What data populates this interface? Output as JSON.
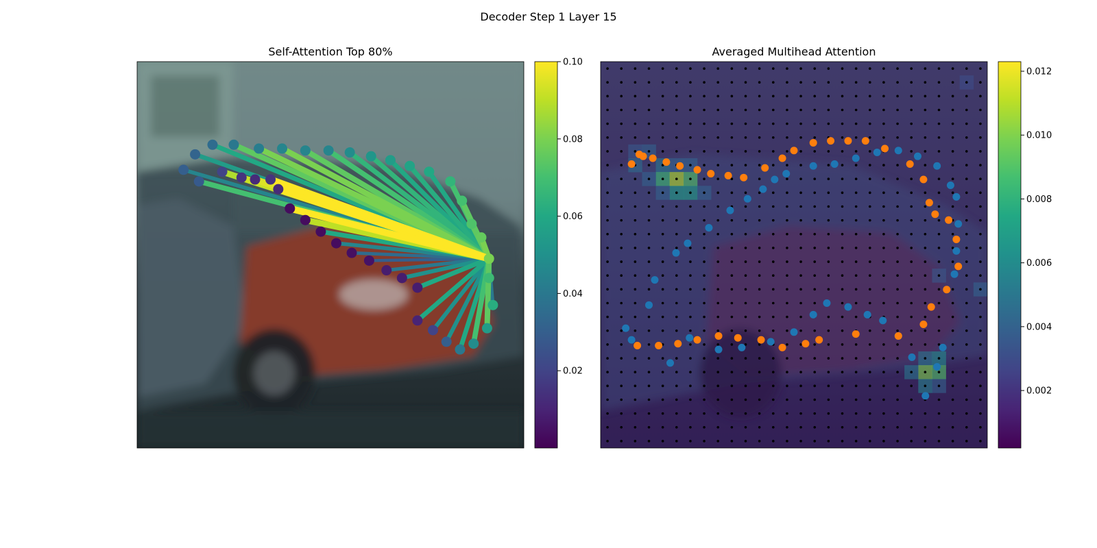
{
  "figure": {
    "suptitle": "Decoder Step 1 Layer 15"
  },
  "chart_data": [
    {
      "type": "scatter",
      "title": "Self-Attention Top 80%",
      "description_visible": "query point with weighted attention lines to contour points, over a blurred photo of a red car",
      "colormap": "viridis",
      "colorbar": {
        "min": 0.0,
        "max": 0.1,
        "ticks": [
          "0.02",
          "0.04",
          "0.06",
          "0.08",
          "0.10"
        ],
        "tick_values": [
          0.02,
          0.04,
          0.06,
          0.08,
          0.1
        ]
      },
      "x_range": [
        0,
        100
      ],
      "y_range": [
        0,
        100
      ],
      "query_point": {
        "x": 91,
        "y": 51,
        "value": 0.08
      },
      "points": [
        {
          "x": 12,
          "y": 28,
          "v": 0.03
        },
        {
          "x": 15,
          "y": 24,
          "v": 0.032
        },
        {
          "x": 19.5,
          "y": 21.5,
          "v": 0.035
        },
        {
          "x": 25,
          "y": 21.5,
          "v": 0.04
        },
        {
          "x": 31.5,
          "y": 22.5,
          "v": 0.042
        },
        {
          "x": 37.5,
          "y": 22.5,
          "v": 0.045
        },
        {
          "x": 43.5,
          "y": 23,
          "v": 0.045
        },
        {
          "x": 49.5,
          "y": 23,
          "v": 0.045
        },
        {
          "x": 55,
          "y": 23.5,
          "v": 0.048
        },
        {
          "x": 60.5,
          "y": 24.5,
          "v": 0.052
        },
        {
          "x": 65.5,
          "y": 25.5,
          "v": 0.055
        },
        {
          "x": 70.5,
          "y": 27,
          "v": 0.058
        },
        {
          "x": 75.5,
          "y": 28.5,
          "v": 0.06
        },
        {
          "x": 81,
          "y": 31,
          "v": 0.065
        },
        {
          "x": 84,
          "y": 36,
          "v": 0.07
        },
        {
          "x": 86.5,
          "y": 42,
          "v": 0.072
        },
        {
          "x": 89,
          "y": 45.5,
          "v": 0.076
        },
        {
          "x": 91,
          "y": 56,
          "v": 0.068
        },
        {
          "x": 92,
          "y": 63,
          "v": 0.062
        },
        {
          "x": 90.5,
          "y": 69,
          "v": 0.055
        },
        {
          "x": 87,
          "y": 73,
          "v": 0.048
        },
        {
          "x": 83.5,
          "y": 74.5,
          "v": 0.04
        },
        {
          "x": 80,
          "y": 72.5,
          "v": 0.03
        },
        {
          "x": 76.5,
          "y": 69.5,
          "v": 0.02
        },
        {
          "x": 72.5,
          "y": 67,
          "v": 0.01
        },
        {
          "x": 72.5,
          "y": 58.5,
          "v": 0.008
        },
        {
          "x": 68.5,
          "y": 56,
          "v": 0.008
        },
        {
          "x": 64.5,
          "y": 54,
          "v": 0.008
        },
        {
          "x": 60,
          "y": 51.5,
          "v": 0.005
        },
        {
          "x": 55.5,
          "y": 49.5,
          "v": 0.004
        },
        {
          "x": 51.5,
          "y": 47,
          "v": 0.003
        },
        {
          "x": 47.5,
          "y": 44,
          "v": 0.003
        },
        {
          "x": 43.5,
          "y": 41,
          "v": 0.003
        },
        {
          "x": 39.5,
          "y": 38,
          "v": 0.003
        },
        {
          "x": 36.5,
          "y": 33,
          "v": 0.012
        },
        {
          "x": 34.5,
          "y": 30.5,
          "v": 0.015
        },
        {
          "x": 30.5,
          "y": 30.5,
          "v": 0.012
        },
        {
          "x": 27,
          "y": 30,
          "v": 0.015
        },
        {
          "x": 22,
          "y": 28.5,
          "v": 0.02
        },
        {
          "x": 16,
          "y": 31,
          "v": 0.028
        }
      ],
      "line_weights": [
        0.045,
        0.055,
        0.06,
        0.075,
        0.08,
        0.08,
        0.075,
        0.07,
        0.065,
        0.065,
        0.06,
        0.062,
        0.06,
        0.07,
        0.075,
        0.075,
        0.08,
        0.03,
        0.04,
        0.075,
        0.07,
        0.06,
        0.05,
        0.05,
        0.06,
        0.06,
        0.05,
        0.04,
        0.03,
        0.035,
        0.045,
        0.06,
        0.09,
        0.1,
        0.1,
        0.1,
        0.095,
        0.092,
        0.088,
        0.07
      ]
    },
    {
      "type": "heatmap",
      "title": "Averaged Multihead Attention",
      "colormap": "viridis",
      "colorbar": {
        "min": 0.0002,
        "max": 0.0123,
        "ticks": [
          "0.002",
          "0.004",
          "0.006",
          "0.008",
          "0.010",
          "0.012"
        ],
        "tick_values": [
          0.002,
          0.004,
          0.006,
          0.008,
          0.01,
          0.012
        ]
      },
      "grid": {
        "cols": 28,
        "rows": 28
      },
      "hot_cells": [
        {
          "col": 4,
          "row": 7,
          "v": 0.005
        },
        {
          "col": 5,
          "row": 7,
          "v": 0.004
        },
        {
          "col": 6,
          "row": 7,
          "v": 0.004
        },
        {
          "col": 2,
          "row": 6,
          "v": 0.0035
        },
        {
          "col": 3,
          "row": 6,
          "v": 0.004
        },
        {
          "col": 2,
          "row": 7,
          "v": 0.0045
        },
        {
          "col": 4,
          "row": 8,
          "v": 0.0085
        },
        {
          "col": 5,
          "row": 8,
          "v": 0.011
        },
        {
          "col": 6,
          "row": 8,
          "v": 0.009
        },
        {
          "col": 3,
          "row": 8,
          "v": 0.004
        },
        {
          "col": 5,
          "row": 9,
          "v": 0.007
        },
        {
          "col": 6,
          "row": 9,
          "v": 0.007
        },
        {
          "col": 7,
          "row": 9,
          "v": 0.004
        },
        {
          "col": 4,
          "row": 9,
          "v": 0.004
        },
        {
          "col": 23,
          "row": 21,
          "v": 0.005
        },
        {
          "col": 24,
          "row": 21,
          "v": 0.006
        },
        {
          "col": 23,
          "row": 22,
          "v": 0.01
        },
        {
          "col": 22,
          "row": 22,
          "v": 0.005
        },
        {
          "col": 24,
          "row": 22,
          "v": 0.009
        },
        {
          "col": 23,
          "row": 23,
          "v": 0.0055
        },
        {
          "col": 24,
          "row": 23,
          "v": 0.004
        },
        {
          "col": 24,
          "row": 15,
          "v": 0.0035
        },
        {
          "col": 27,
          "row": 16,
          "v": 0.004
        },
        {
          "col": 26,
          "row": 1,
          "v": 0.003
        }
      ],
      "series": [
        {
          "name": "",
          "color": "#1f77b4",
          "points": [
            [
              6.5,
              69
            ],
            [
              12.5,
              63
            ],
            [
              14,
              56.5
            ],
            [
              19.5,
              49.5
            ],
            [
              22.5,
              47
            ],
            [
              28,
              43
            ],
            [
              33.5,
              38.5
            ],
            [
              38,
              35.5
            ],
            [
              42,
              33
            ],
            [
              45,
              30.5
            ],
            [
              48,
              29
            ],
            [
              55,
              27
            ],
            [
              60.5,
              26.5
            ],
            [
              66,
              25
            ],
            [
              71.5,
              23.5
            ],
            [
              77,
              23
            ],
            [
              82,
              24.5
            ],
            [
              87,
              27
            ],
            [
              90.5,
              32
            ],
            [
              92,
              35
            ],
            [
              92.5,
              42
            ],
            [
              92,
              49
            ],
            [
              91.5,
              55
            ],
            [
              88.5,
              74
            ],
            [
              87,
              79
            ],
            [
              84,
              86.5
            ],
            [
              80.5,
              76.5
            ],
            [
              77,
              71
            ],
            [
              73,
              67
            ],
            [
              69,
              65.5
            ],
            [
              64,
              63.5
            ],
            [
              58.5,
              62.5
            ],
            [
              55,
              65.5
            ],
            [
              50,
              70
            ],
            [
              44,
              72.5
            ],
            [
              36.5,
              74
            ],
            [
              30.5,
              74.5
            ],
            [
              23,
              71.5
            ],
            [
              18,
              78
            ],
            [
              8,
              72
            ]
          ]
        },
        {
          "name": "",
          "color": "#ff7f0e",
          "points": [
            [
              9.5,
              73.5
            ],
            [
              15,
              73.5
            ],
            [
              20,
              73
            ],
            [
              25,
              72
            ],
            [
              30.5,
              71
            ],
            [
              35.5,
              71.5
            ],
            [
              41.5,
              72
            ],
            [
              47,
              74
            ],
            [
              53,
              73
            ],
            [
              56.5,
              72
            ],
            [
              66,
              70.5
            ],
            [
              77,
              71
            ],
            [
              83.5,
              68
            ],
            [
              85.5,
              63.5
            ],
            [
              89.5,
              59
            ],
            [
              92.5,
              53
            ],
            [
              92,
              46
            ],
            [
              90,
              41
            ],
            [
              86.5,
              39.5
            ],
            [
              85,
              36.5
            ],
            [
              83.5,
              30.5
            ],
            [
              80,
              26.5
            ],
            [
              73.5,
              22.5
            ],
            [
              68.5,
              20.5
            ],
            [
              64,
              20.5
            ],
            [
              59.5,
              20.5
            ],
            [
              55,
              21
            ],
            [
              50,
              23
            ],
            [
              47,
              25
            ],
            [
              42.5,
              27.5
            ],
            [
              37,
              30
            ],
            [
              33,
              29.5
            ],
            [
              28.5,
              29
            ],
            [
              25,
              28
            ],
            [
              20.5,
              27
            ],
            [
              17,
              26
            ],
            [
              13.5,
              25
            ],
            [
              11,
              24.5
            ],
            [
              10,
              24
            ],
            [
              8,
              26.5
            ]
          ]
        }
      ]
    }
  ]
}
